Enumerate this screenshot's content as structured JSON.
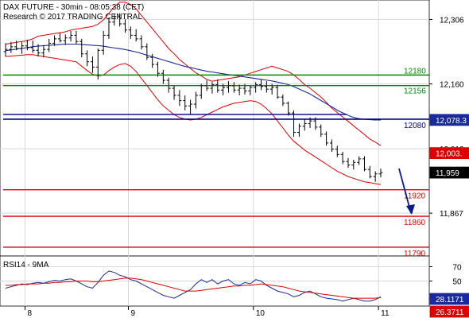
{
  "header": {
    "title": "DAX FUTURE - 30min - 08:05:38 (CET)",
    "copyright": "Research © 2017 TRADING CENTRAL"
  },
  "colors": {
    "price": "#000000",
    "bollinger": "#dd0000",
    "moving_average": "#1a2a9a",
    "resistance": "#008800",
    "pivot": "#000080",
    "support": "#dd0000",
    "arrow": "#0a1a8a",
    "rsi": "#1a2a9a",
    "rsi_ma": "#dd0000",
    "grid": "#d8d8d8"
  },
  "chart_data": [
    {
      "type": "line",
      "subtype": "ohlc-bars",
      "title": "DAX FUTURE - 30min - 08:05:38 (CET)",
      "x_tick_labels": [
        "8",
        "9",
        "10",
        "11"
      ],
      "y_tick_labels": [
        "12,306",
        "12,160",
        "12,013",
        "11,867"
      ],
      "ylim": [
        11770,
        12350
      ],
      "grid": true,
      "price_bars": [
        [
          12233,
          12252,
          12222,
          12238
        ],
        [
          12238,
          12255,
          12230,
          12244
        ],
        [
          12244,
          12258,
          12236,
          12240
        ],
        [
          12240,
          12256,
          12228,
          12246
        ],
        [
          12246,
          12260,
          12236,
          12242
        ],
        [
          12242,
          12258,
          12230,
          12236
        ],
        [
          12236,
          12250,
          12222,
          12230
        ],
        [
          12230,
          12248,
          12220,
          12238
        ],
        [
          12238,
          12262,
          12232,
          12252
        ],
        [
          12252,
          12270,
          12246,
          12262
        ],
        [
          12262,
          12276,
          12254,
          12258
        ],
        [
          12258,
          12272,
          12248,
          12264
        ],
        [
          12264,
          12280,
          12256,
          12270
        ],
        [
          12270,
          12280,
          12250,
          12256
        ],
        [
          12256,
          12262,
          12220,
          12228
        ],
        [
          12228,
          12236,
          12200,
          12210
        ],
        [
          12210,
          12222,
          12185,
          12198
        ],
        [
          12198,
          12240,
          12170,
          12236
        ],
        [
          12236,
          12280,
          12226,
          12270
        ],
        [
          12270,
          12310,
          12262,
          12300
        ],
        [
          12300,
          12318,
          12292,
          12312
        ],
        [
          12312,
          12320,
          12290,
          12296
        ],
        [
          12296,
          12306,
          12276,
          12282
        ],
        [
          12282,
          12290,
          12262,
          12270
        ],
        [
          12270,
          12284,
          12256,
          12262
        ],
        [
          12262,
          12270,
          12238,
          12244
        ],
        [
          12244,
          12252,
          12214,
          12220
        ],
        [
          12220,
          12228,
          12196,
          12204
        ],
        [
          12204,
          12210,
          12176,
          12184
        ],
        [
          12184,
          12192,
          12160,
          12168
        ],
        [
          12168,
          12174,
          12140,
          12150
        ],
        [
          12150,
          12156,
          12124,
          12134
        ],
        [
          12134,
          12146,
          12110,
          12122
        ],
        [
          12122,
          12134,
          12100,
          12110
        ],
        [
          12110,
          12124,
          12090,
          12114
        ],
        [
          12114,
          12142,
          12104,
          12134
        ],
        [
          12134,
          12160,
          12126,
          12156
        ],
        [
          12156,
          12168,
          12144,
          12150
        ],
        [
          12150,
          12164,
          12138,
          12158
        ],
        [
          12158,
          12170,
          12140,
          12146
        ],
        [
          12146,
          12160,
          12134,
          12152
        ],
        [
          12152,
          12166,
          12140,
          12156
        ],
        [
          12156,
          12164,
          12140,
          12146
        ],
        [
          12146,
          12158,
          12134,
          12150
        ],
        [
          12150,
          12160,
          12136,
          12144
        ],
        [
          12144,
          12156,
          12134,
          12152
        ],
        [
          12152,
          12164,
          12140,
          12158
        ],
        [
          12158,
          12170,
          12146,
          12154
        ],
        [
          12154,
          12166,
          12140,
          12148
        ],
        [
          12148,
          12160,
          12136,
          12152
        ],
        [
          12152,
          12158,
          12126,
          12130
        ],
        [
          12130,
          12136,
          12110,
          12116
        ],
        [
          12116,
          12120,
          12088,
          12094
        ],
        [
          12094,
          12100,
          12040,
          12050
        ],
        [
          12050,
          12070,
          12040,
          12064
        ],
        [
          12064,
          12080,
          12054,
          12070
        ],
        [
          12070,
          12084,
          12060,
          12076
        ],
        [
          12076,
          12084,
          12056,
          12062
        ],
        [
          12062,
          12068,
          12040,
          12046
        ],
        [
          12046,
          12052,
          12020,
          12026
        ],
        [
          12026,
          12034,
          12006,
          12012
        ],
        [
          12012,
          12020,
          11994,
          12000
        ],
        [
          12000,
          12006,
          11978,
          11984
        ],
        [
          11984,
          11992,
          11970,
          11976
        ],
        [
          11976,
          11988,
          11966,
          11982
        ],
        [
          11982,
          11996,
          11976,
          11990
        ],
        [
          11990,
          11996,
          11962,
          11966
        ],
        [
          11966,
          11974,
          11946,
          11950
        ],
        [
          11950,
          11962,
          11938,
          11956
        ],
        [
          11956,
          11968,
          11948,
          11959
        ]
      ],
      "series": [
        {
          "role": "bollinger-upper",
          "values": [
            12250,
            12252,
            12254,
            12256,
            12258,
            12262,
            12268,
            12270,
            12272,
            12274,
            12276,
            12278,
            12282,
            12284,
            12286,
            12288,
            12290,
            12295,
            12305,
            12320,
            12335,
            12345,
            12345,
            12340,
            12330,
            12315,
            12300,
            12285,
            12270,
            12255,
            12240,
            12228,
            12215,
            12205,
            12195,
            12185,
            12178,
            12170,
            12166,
            12168,
            12170,
            12172,
            12174,
            12176,
            12180,
            12184,
            12188,
            12192,
            12196,
            12200,
            12196,
            12192,
            12188,
            12180,
            12170,
            12158,
            12150,
            12140,
            12130,
            12118,
            12105,
            12095,
            12085,
            12075,
            12065,
            12055,
            12045,
            12035,
            12028,
            12020
          ]
        },
        {
          "role": "bollinger-lower",
          "values": [
            12222,
            12223,
            12224,
            12225,
            12226,
            12226,
            12224,
            12222,
            12220,
            12218,
            12216,
            12214,
            12212,
            12210,
            12200,
            12190,
            12182,
            12178,
            12180,
            12190,
            12198,
            12204,
            12206,
            12200,
            12188,
            12172,
            12156,
            12140,
            12124,
            12110,
            12100,
            12090,
            12084,
            12080,
            12078,
            12080,
            12084,
            12090,
            12096,
            12102,
            12108,
            12112,
            12116,
            12118,
            12120,
            12122,
            12120,
            12114,
            12104,
            12092,
            12076,
            12060,
            12044,
            12030,
            12020,
            12010,
            12002,
            11994,
            11986,
            11978,
            11970,
            11962,
            11956,
            11950,
            11946,
            11942,
            11938,
            11936,
            11934,
            11932
          ]
        },
        {
          "role": "moving-average",
          "values": [
            12235,
            12237,
            12239,
            12241,
            12243,
            12245,
            12246,
            12247,
            12248,
            12249,
            12250,
            12250,
            12250,
            12249,
            12248,
            12247,
            12246,
            12244,
            12242,
            12240,
            12238,
            12235,
            12232,
            12228,
            12224,
            12220,
            12216,
            12212,
            12208,
            12204,
            12200,
            12197,
            12194,
            12191,
            12188,
            12186,
            12184,
            12182,
            12180,
            12178,
            12176,
            12174,
            12172,
            12170,
            12168,
            12166,
            12163,
            12160,
            12156,
            12150,
            12144,
            12138,
            12130,
            12122,
            12114,
            12106,
            12098,
            12092,
            12086,
            12082,
            12080,
            12079,
            12078,
            12078
          ]
        }
      ],
      "horizontal_levels": [
        {
          "value": 12180,
          "label": "12180",
          "role": "resistance"
        },
        {
          "value": 12156,
          "label": "12156",
          "role": "resistance"
        },
        {
          "value": 12080,
          "label": "12080",
          "role": "pivot"
        },
        {
          "value": 11920,
          "label": "11920",
          "role": "support"
        },
        {
          "value": 11860,
          "label": "11860",
          "role": "support"
        },
        {
          "value": 11790,
          "label": "11790",
          "role": "support"
        }
      ],
      "price_tags": [
        {
          "value": 12078.3,
          "label": "12,078.3",
          "role": "moving-average"
        },
        {
          "value": 12003,
          "label": "12,003.",
          "role": "bollinger"
        },
        {
          "value": 11959,
          "label": "11,959",
          "role": "last-price"
        }
      ]
    },
    {
      "type": "line",
      "title": "RSI14 - 9MA",
      "x_tick_labels": [
        "8",
        "9",
        "10",
        "11"
      ],
      "y_tick_labels": [
        "70",
        "50"
      ],
      "ylim": [
        15,
        85
      ],
      "series": [
        {
          "role": "rsi",
          "values": [
            40,
            42,
            44,
            46,
            45,
            47,
            48,
            47,
            49,
            51,
            50,
            52,
            53,
            50,
            46,
            42,
            40,
            48,
            58,
            64,
            62,
            58,
            56,
            52,
            50,
            46,
            42,
            38,
            34,
            30,
            28,
            26,
            30,
            34,
            38,
            46,
            52,
            48,
            52,
            46,
            50,
            52,
            46,
            44,
            48,
            46,
            52,
            50,
            44,
            40,
            36,
            34,
            32,
            28,
            30,
            34,
            36,
            32,
            28,
            26,
            25,
            24,
            22,
            24,
            26,
            24,
            22,
            22,
            24,
            28
          ]
        },
        {
          "role": "rsi-ma",
          "values": [
            44,
            44,
            45,
            45,
            46,
            46,
            46,
            47,
            47,
            48,
            48,
            49,
            49,
            50,
            50,
            50,
            49,
            49,
            50,
            51,
            52,
            53,
            54,
            54,
            53,
            52,
            50,
            48,
            46,
            44,
            42,
            40,
            38,
            36,
            36,
            36,
            37,
            38,
            39,
            40,
            41,
            42,
            43,
            43,
            44,
            44,
            45,
            46,
            45,
            44,
            43,
            42,
            40,
            38,
            36,
            35,
            34,
            33,
            32,
            31,
            30,
            29,
            28,
            27,
            26,
            26,
            26,
            26,
            26,
            27
          ]
        }
      ],
      "price_tags": [
        {
          "value": 28.1171,
          "label": "28.1171",
          "role": "rsi"
        },
        {
          "value": 26.3711,
          "label": "26.3711",
          "role": "rsi-ma"
        }
      ]
    }
  ]
}
